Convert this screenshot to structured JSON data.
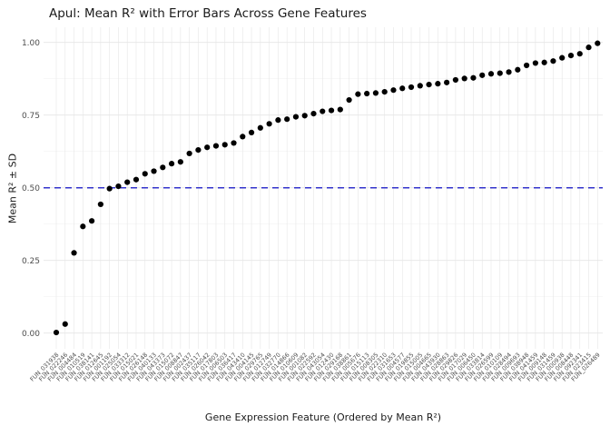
{
  "chart_data": {
    "type": "scatter",
    "title": "Apul: Mean R² with Error Bars Across Gene Features",
    "xlabel": "Gene Expression Feature (Ordered by Mean R²)",
    "ylabel": "Mean R² ± SD",
    "ylim": [
      -0.05,
      1.05
    ],
    "ytick_values": [
      0.0,
      0.25,
      0.5,
      0.75,
      1.0
    ],
    "ytick_labels": [
      "0.00",
      "0.25",
      "0.50",
      "0.75",
      "1.00"
    ],
    "ytick_minor": [
      0.125,
      0.375,
      0.625,
      0.875
    ],
    "grid": true,
    "legend_position": "none",
    "reference_line": {
      "value": 0.5,
      "style": "dashed",
      "color": "#3333cc"
    },
    "point_color": "#000000",
    "categories": [
      "FUN_031938",
      "FUN_022246",
      "FUN_004484",
      "FUN_010519",
      "FUN_038141",
      "FUN_012645",
      "FUN_001192",
      "FUN_025054",
      "FUN_033312",
      "FUN_015021",
      "FUN_026148",
      "FUN_040133",
      "FUN_043373",
      "FUN_015072",
      "FUN_008847",
      "FUN_002437",
      "FUN_035117",
      "FUN_026042",
      "FUN_017803",
      "FUN_006503",
      "FUN_036417",
      "FUN_043410",
      "FUN_004145",
      "FUN_029765",
      "FUN_012749",
      "FUN_032770",
      "FUN_014866",
      "FUN_010609",
      "FUN_001082",
      "FUN_022592",
      "FUN_043054",
      "FUN_012430",
      "FUN_029168",
      "FUN_038861",
      "FUN_005676",
      "FUN_015113",
      "FUN_008305",
      "FUN_022310",
      "FUN_031653",
      "FUN_004577",
      "FUN_019855",
      "FUN_015005",
      "FUN_004665",
      "FUN_043930",
      "FUN_028863",
      "FUN_029826",
      "FUN_017029",
      "FUN_006450",
      "FUN_033814",
      "FUN_026599",
      "FUN_010109",
      "FUN_028494",
      "FUN_009693",
      "FUN_038948",
      "FUN_041459",
      "FUN_009148",
      "FUN_031459",
      "FUN_000938",
      "FUN_008448",
      "FUN_092341",
      "FUN_023415",
      "FUN_026489"
    ],
    "values": [
      0.002,
      0.031,
      0.276,
      0.367,
      0.386,
      0.443,
      0.497,
      0.505,
      0.519,
      0.528,
      0.548,
      0.557,
      0.57,
      0.583,
      0.589,
      0.618,
      0.63,
      0.639,
      0.644,
      0.648,
      0.654,
      0.676,
      0.69,
      0.706,
      0.72,
      0.733,
      0.736,
      0.744,
      0.748,
      0.755,
      0.763,
      0.766,
      0.769,
      0.802,
      0.822,
      0.824,
      0.826,
      0.83,
      0.836,
      0.842,
      0.846,
      0.851,
      0.855,
      0.858,
      0.862,
      0.871,
      0.876,
      0.878,
      0.887,
      0.892,
      0.894,
      0.898,
      0.906,
      0.921,
      0.929,
      0.931,
      0.936,
      0.947,
      0.955,
      0.961,
      0.983,
      0.997
    ]
  },
  "colors": {
    "background": "#ffffff",
    "grid_major": "#e6e6e6",
    "grid_minor": "#f2f2f2",
    "tick_text": "#4d4d4d",
    "axis_title_text": "#1a1a1a",
    "reference_line": "#3333cc",
    "point": "#000000"
  }
}
